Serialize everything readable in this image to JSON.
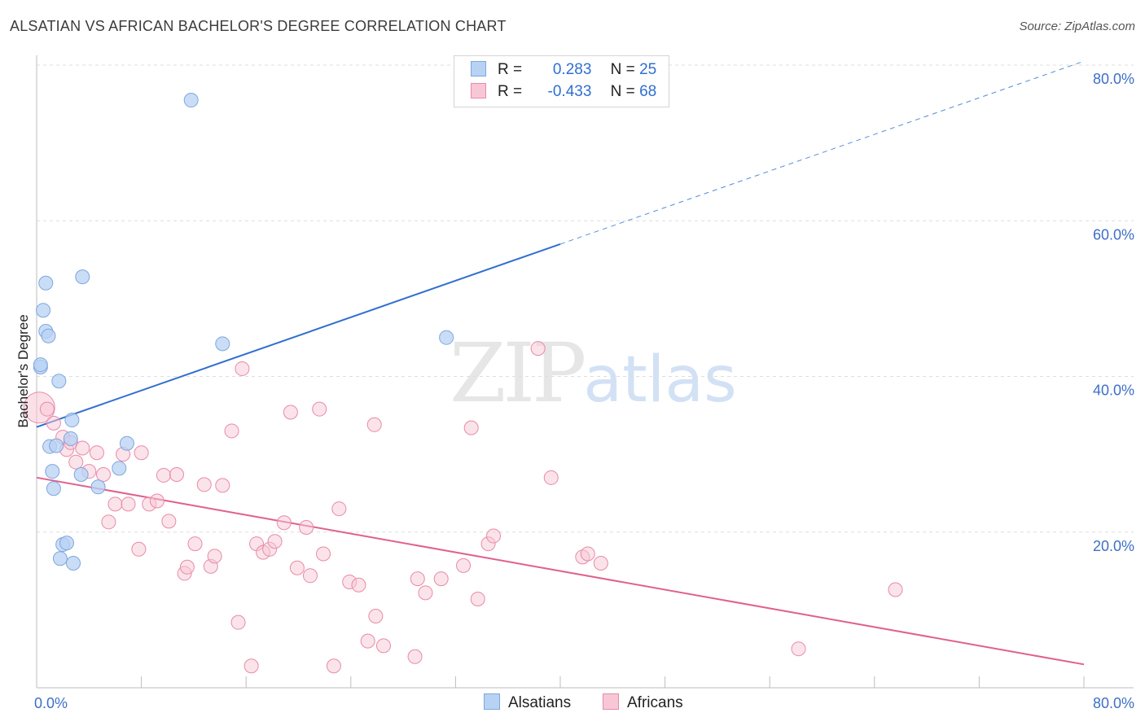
{
  "header": {
    "title": "ALSATIAN VS AFRICAN BACHELOR'S DEGREE CORRELATION CHART",
    "source": "Source: ZipAtlas.com"
  },
  "watermark": {
    "zip": "ZIP",
    "atlas": "atlas"
  },
  "legend_top": {
    "rows": [
      {
        "r_label": "R =",
        "r_value": "0.283",
        "n_label": "N =",
        "n_value": "25"
      },
      {
        "r_label": "R =",
        "r_value": "-0.433",
        "n_label": "N =",
        "n_value": "68"
      }
    ]
  },
  "legend_bottom": {
    "alsatians": "Alsatians",
    "africans": "Africans"
  },
  "colors": {
    "blue_fill": "#b8d2f3",
    "blue_stroke": "#7ea6df",
    "blue_line": "#2f6fd0",
    "pink_fill": "#f8c7d6",
    "pink_stroke": "#e88aaa",
    "pink_line": "#e0608e"
  },
  "chart_data": {
    "type": "scatter",
    "title": "ALSATIAN VS AFRICAN BACHELOR'S DEGREE CORRELATION CHART",
    "xlabel": "",
    "ylabel": "Bachelor's Degree",
    "xlim": [
      0,
      80
    ],
    "ylim": [
      0,
      80
    ],
    "x_tick_labels": [
      "0.0%",
      "80.0%"
    ],
    "y_tick_labels": [
      "20.0%",
      "40.0%",
      "60.0%",
      "80.0%"
    ],
    "y_ticks": [
      20,
      40,
      60,
      80
    ],
    "series": [
      {
        "name": "Alsatians",
        "r": 0.283,
        "n": 25,
        "trend": {
          "x0": 0,
          "y0": 33.5,
          "x1": 40,
          "y1": 57.0,
          "dash_to_x": 80,
          "dash_to_y": 80.5
        },
        "points": [
          [
            0.3,
            41.2
          ],
          [
            0.3,
            41.5
          ],
          [
            0.5,
            48.5
          ],
          [
            0.7,
            52.0
          ],
          [
            0.7,
            45.8
          ],
          [
            0.9,
            45.2
          ],
          [
            1.0,
            31.0
          ],
          [
            1.2,
            27.8
          ],
          [
            1.3,
            25.6
          ],
          [
            1.5,
            31.1
          ],
          [
            1.7,
            39.4
          ],
          [
            1.8,
            16.6
          ],
          [
            2.0,
            18.4
          ],
          [
            2.3,
            18.6
          ],
          [
            2.7,
            34.4
          ],
          [
            2.8,
            16.0
          ],
          [
            3.4,
            27.4
          ],
          [
            3.5,
            52.8
          ],
          [
            4.7,
            25.8
          ],
          [
            6.3,
            28.2
          ],
          [
            6.9,
            31.4
          ],
          [
            11.8,
            75.5
          ],
          [
            14.2,
            44.2
          ],
          [
            31.3,
            45.0
          ],
          [
            2.6,
            32.0
          ]
        ]
      },
      {
        "name": "Africans",
        "r": -0.433,
        "n": 68,
        "trend": {
          "x0": 0,
          "y0": 27.0,
          "x1": 80,
          "y1": 3.0
        },
        "points": [
          [
            0.2,
            36.0
          ],
          [
            0.8,
            35.8
          ],
          [
            1.3,
            34.0
          ],
          [
            2.0,
            32.2
          ],
          [
            2.3,
            30.6
          ],
          [
            2.6,
            31.5
          ],
          [
            3.0,
            29.0
          ],
          [
            3.5,
            30.8
          ],
          [
            4.0,
            27.8
          ],
          [
            4.6,
            30.2
          ],
          [
            5.1,
            27.4
          ],
          [
            5.5,
            21.3
          ],
          [
            6.0,
            23.6
          ],
          [
            6.6,
            30.0
          ],
          [
            7.0,
            23.6
          ],
          [
            7.8,
            17.8
          ],
          [
            8.0,
            30.2
          ],
          [
            8.6,
            23.6
          ],
          [
            9.2,
            24.0
          ],
          [
            9.7,
            27.3
          ],
          [
            10.1,
            21.4
          ],
          [
            10.7,
            27.4
          ],
          [
            11.3,
            14.7
          ],
          [
            11.5,
            15.5
          ],
          [
            12.1,
            18.5
          ],
          [
            12.8,
            26.1
          ],
          [
            13.3,
            15.6
          ],
          [
            13.6,
            16.9
          ],
          [
            14.2,
            26.0
          ],
          [
            14.9,
            33.0
          ],
          [
            15.4,
            8.4
          ],
          [
            15.7,
            41.0
          ],
          [
            16.4,
            2.8
          ],
          [
            16.8,
            18.5
          ],
          [
            17.3,
            17.4
          ],
          [
            17.8,
            17.8
          ],
          [
            18.2,
            18.8
          ],
          [
            18.9,
            21.2
          ],
          [
            19.4,
            35.4
          ],
          [
            19.9,
            15.4
          ],
          [
            20.6,
            20.6
          ],
          [
            20.9,
            14.4
          ],
          [
            21.6,
            35.8
          ],
          [
            21.9,
            17.2
          ],
          [
            22.7,
            2.8
          ],
          [
            23.1,
            23.0
          ],
          [
            23.9,
            13.6
          ],
          [
            24.6,
            13.2
          ],
          [
            25.3,
            6.0
          ],
          [
            25.8,
            33.8
          ],
          [
            25.9,
            9.2
          ],
          [
            26.5,
            5.4
          ],
          [
            28.9,
            4.0
          ],
          [
            29.1,
            14.0
          ],
          [
            29.7,
            12.2
          ],
          [
            30.9,
            14.0
          ],
          [
            32.6,
            15.7
          ],
          [
            33.2,
            33.4
          ],
          [
            33.7,
            11.4
          ],
          [
            34.5,
            18.5
          ],
          [
            34.9,
            19.5
          ],
          [
            38.3,
            43.6
          ],
          [
            39.3,
            27.0
          ],
          [
            41.7,
            16.8
          ],
          [
            42.1,
            17.2
          ],
          [
            43.1,
            16.0
          ],
          [
            58.2,
            5.0
          ],
          [
            65.6,
            12.6
          ]
        ]
      }
    ]
  }
}
